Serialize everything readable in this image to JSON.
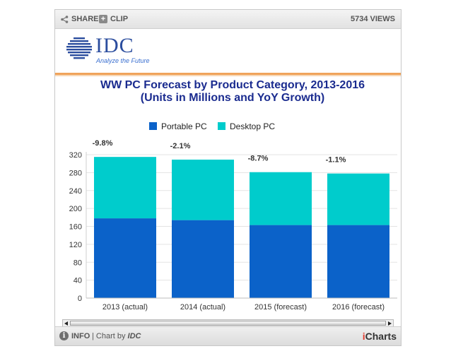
{
  "toolbar": {
    "share_label": "SHARE",
    "clip_label": "CLIP",
    "views_label": "5734 VIEWS"
  },
  "logo": {
    "text": "IDC",
    "tagline": "Analyze the Future",
    "color": "#2b4d9e"
  },
  "footer": {
    "info_label": "INFO",
    "chart_by_prefix": "| Chart by ",
    "chart_by_brand": "IDC",
    "icharts_i": "i",
    "icharts_rest": "Charts"
  },
  "chart_data": {
    "type": "bar",
    "stacked": true,
    "title": "WW PC Forecast by Product Category, 2013-2016",
    "subtitle": "(Units in Millions and YoY Growth)",
    "categories": [
      "2013 (actual)",
      "2014 (actual)",
      "2015 (forecast)",
      "2016 (forecast)"
    ],
    "series": [
      {
        "name": "Portable PC",
        "color": "#0b62c9",
        "values": [
          178,
          174,
          163,
          163
        ]
      },
      {
        "name": "Desktop PC",
        "color": "#00cccc",
        "values": [
          137,
          135,
          118,
          115
        ]
      }
    ],
    "annotations": [
      "-9.8%",
      "-2.1%",
      "-8.7%",
      "-1.1%"
    ],
    "ylim": [
      0,
      320
    ],
    "yticks": [
      "0",
      "40",
      "80",
      "120",
      "160",
      "200",
      "240",
      "280",
      "320"
    ],
    "legend_position": "top",
    "grid": true
  }
}
